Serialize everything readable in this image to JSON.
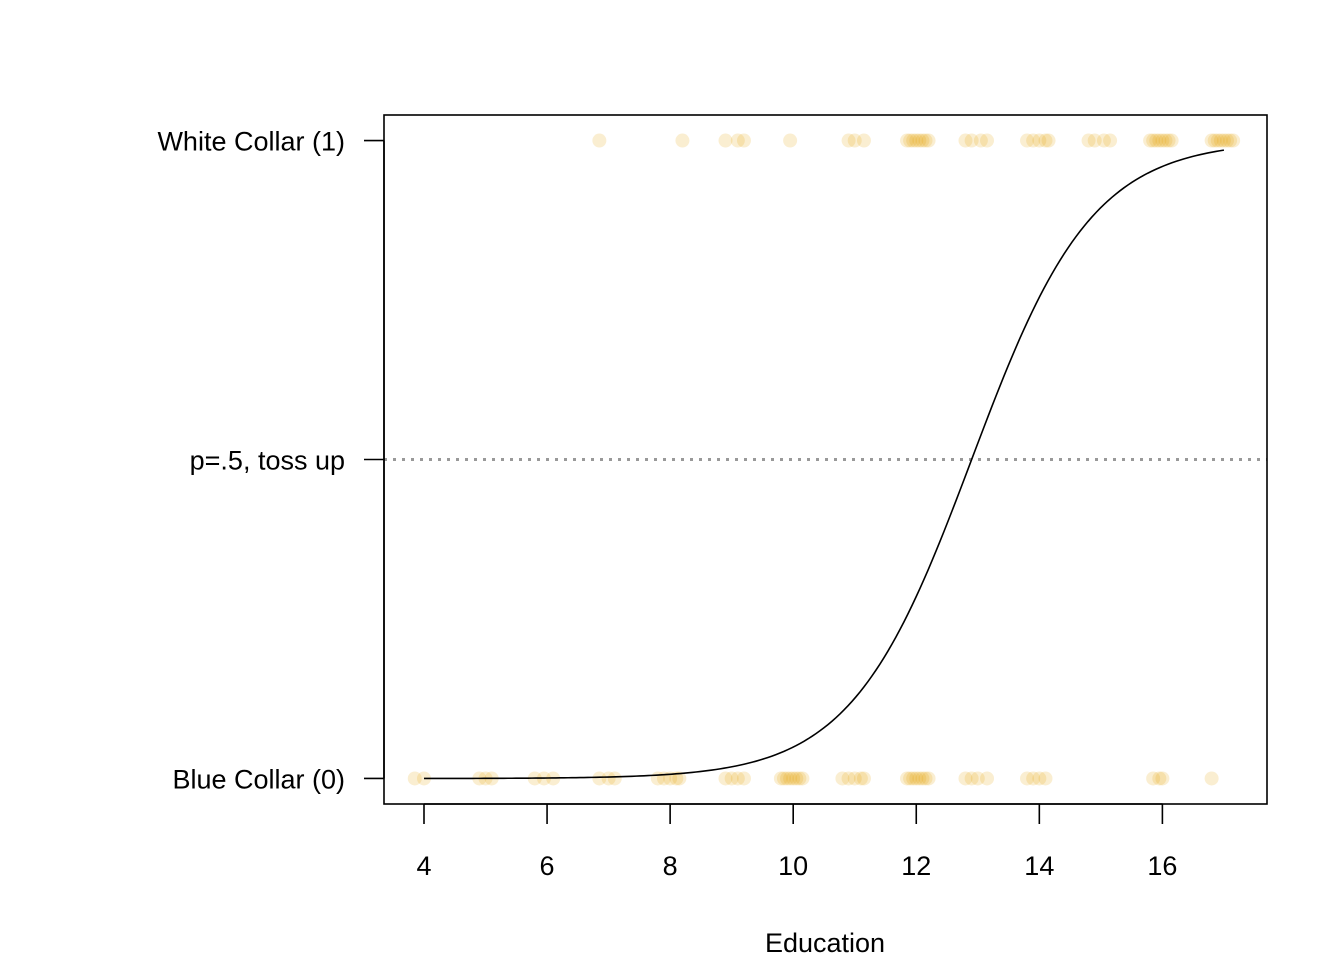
{
  "chart_data": {
    "type": "scatter",
    "xlabel": "Education",
    "ylabel": "",
    "xlim": [
      3.35,
      17.7
    ],
    "ylim": [
      -0.04,
      1.04
    ],
    "x_ticks": [
      4,
      6,
      8,
      10,
      12,
      14,
      16
    ],
    "y_ticks": [
      {
        "value": 0,
        "label": "Blue Collar (0)"
      },
      {
        "value": 0.5,
        "label": "p=.5, toss up"
      },
      {
        "value": 1,
        "label": "White Collar (1)"
      }
    ],
    "grid": false,
    "legend": "none",
    "point_color": "#E69F00",
    "point_opacity": 0.18,
    "reference_line": {
      "y": 0.5,
      "style": "dotted",
      "color": "#999999"
    },
    "curve": {
      "type": "logistic",
      "x_range": [
        4,
        17
      ],
      "points": [
        {
          "x": 4,
          "y": 0.0
        },
        {
          "x": 6,
          "y": 0.0053
        },
        {
          "x": 8,
          "y": 0.018
        },
        {
          "x": 9,
          "y": 0.045
        },
        {
          "x": 10,
          "y": 0.098
        },
        {
          "x": 11,
          "y": 0.19
        },
        {
          "x": 12,
          "y": 0.33
        },
        {
          "x": 12.9,
          "y": 0.5
        },
        {
          "x": 14,
          "y": 0.72
        },
        {
          "x": 15,
          "y": 0.86
        },
        {
          "x": 16,
          "y": 0.93
        },
        {
          "x": 17,
          "y": 0.962
        }
      ]
    },
    "series": [
      {
        "y": 1,
        "x": [
          6.85,
          8.2,
          8.9,
          9.1,
          9.2,
          9.95,
          10.9,
          11.0,
          11.15,
          11.85,
          11.9,
          11.95,
          12.0,
          12.05,
          12.1,
          12.15,
          12.2,
          12.8,
          12.9,
          13.05,
          13.15,
          13.8,
          13.9,
          14.0,
          14.1,
          14.15,
          14.8,
          14.9,
          15.05,
          15.15,
          15.8,
          15.85,
          15.9,
          15.95,
          16.0,
          16.05,
          16.1,
          16.15,
          16.8,
          16.85,
          16.9,
          16.95,
          17.0,
          17.05,
          17.1,
          17.15
        ]
      },
      {
        "y": 0,
        "x": [
          3.85,
          4.0,
          4.9,
          5.0,
          5.1,
          5.8,
          5.95,
          6.1,
          6.85,
          7.0,
          7.1,
          7.8,
          7.9,
          8.0,
          8.1,
          8.15,
          8.9,
          9.0,
          9.1,
          9.2,
          9.8,
          9.85,
          9.9,
          9.95,
          10.0,
          10.05,
          10.1,
          10.15,
          10.8,
          10.9,
          11.0,
          11.1,
          11.15,
          11.85,
          11.9,
          11.95,
          12.0,
          12.05,
          12.1,
          12.15,
          12.2,
          12.8,
          12.9,
          13.0,
          13.15,
          13.8,
          13.9,
          14.0,
          14.1,
          15.85,
          15.95,
          16.0,
          16.8
        ]
      }
    ]
  }
}
